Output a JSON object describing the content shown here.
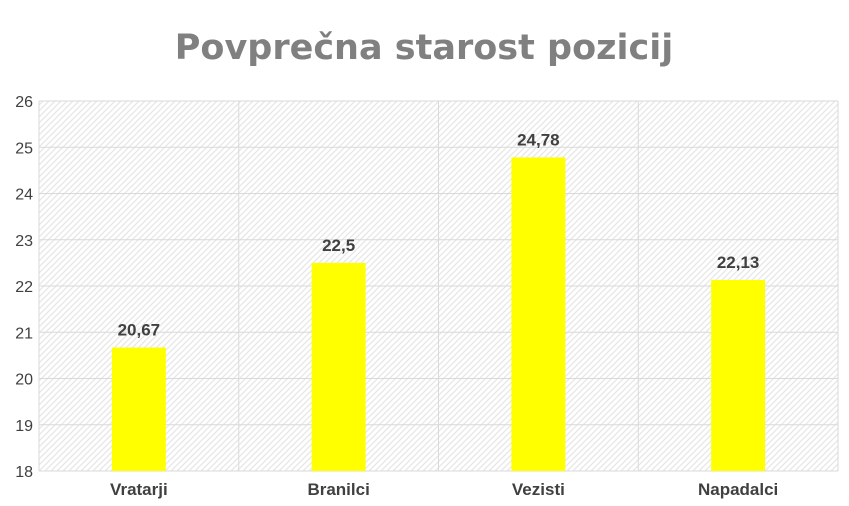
{
  "chart_data": {
    "type": "bar",
    "title": "Povprečna starost pozicij",
    "categories": [
      "Vratarji",
      "Branilci",
      "Vezisti",
      "Napadalci"
    ],
    "values": [
      20.67,
      22.5,
      24.78,
      22.13
    ],
    "value_labels": [
      "20,67",
      "22,5",
      "24,78",
      "22,13"
    ],
    "ylim": [
      18,
      26
    ],
    "yticks": [
      18,
      19,
      20,
      21,
      22,
      23,
      24,
      25,
      26
    ],
    "xlabel": "",
    "ylabel": "",
    "grid": true,
    "legend": "none",
    "colors": {
      "bar": "#ffff00",
      "title": "#808080",
      "grid": "#d9d9d9",
      "text": "#404040"
    }
  }
}
